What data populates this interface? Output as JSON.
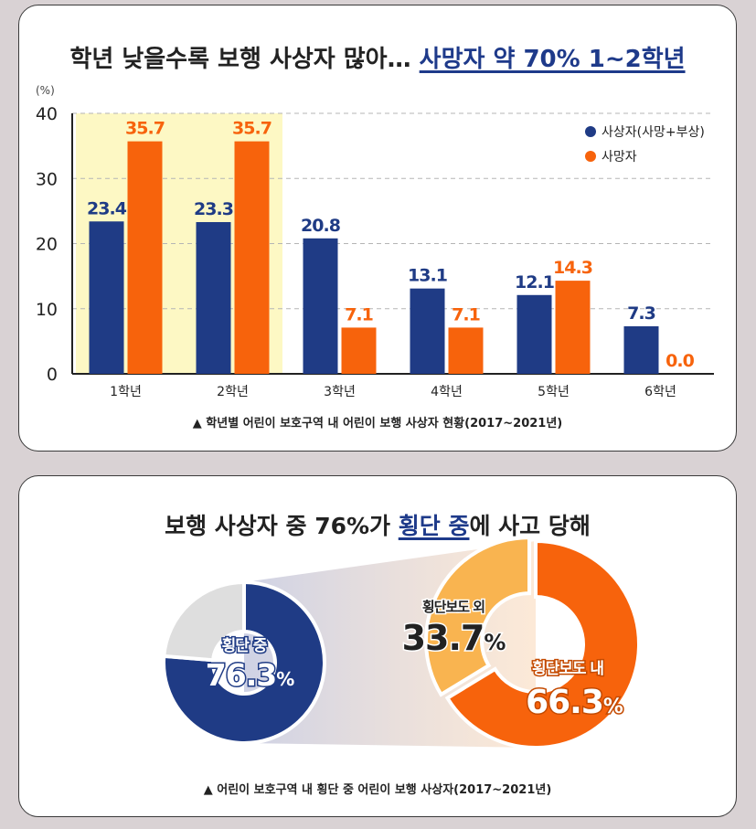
{
  "colors": {
    "navy": "#1f3b85",
    "orange": "#f7630c",
    "light_orange": "#f9b450",
    "gray": "#dedede",
    "highlight": "#fdf8c4"
  },
  "top": {
    "title_plain": "학년 낮을수록 보행 사상자 많아… ",
    "title_emph": "사망자 약 70% 1~2학년",
    "caption": "▲ 학년별 어린이 보호구역 내 어린이 보행 사상자 현황(2017~2021년)"
  },
  "chart_data": [
    {
      "type": "bar",
      "unit_label": "(%)",
      "categories": [
        "1학년",
        "2학년",
        "3학년",
        "4학년",
        "5학년",
        "6학년"
      ],
      "series": [
        {
          "name": "사상자(사망+부상)",
          "values": [
            23.4,
            23.3,
            20.8,
            13.1,
            12.1,
            7.3
          ],
          "labels": [
            "23.4",
            "23.3",
            "20.8",
            "13.1",
            "12.1",
            "7.3"
          ],
          "color": "#1f3b85"
        },
        {
          "name": "사망자",
          "values": [
            35.7,
            35.7,
            7.1,
            7.1,
            14.3,
            0.0
          ],
          "labels": [
            "35.7",
            "35.7",
            "7.1",
            "7.1",
            "14.3",
            "0.0"
          ],
          "color": "#f7630c"
        }
      ],
      "ylim": [
        0,
        40
      ],
      "yticks": [
        "0",
        "10",
        "20",
        "30",
        "40"
      ],
      "grid": true,
      "legend": "top-right",
      "highlighted_categories": [
        "1학년",
        "2학년"
      ]
    },
    {
      "type": "pie",
      "variant": "donut",
      "slices": [
        {
          "label": "횡단 중",
          "value": 76.3,
          "color": "#1f3b85"
        },
        {
          "label": "",
          "value": 23.7,
          "color": "#dedede"
        }
      ]
    },
    {
      "type": "pie",
      "variant": "donut",
      "slices": [
        {
          "label": "횡단보도 내",
          "value": 66.3,
          "color": "#f7630c"
        },
        {
          "label": "횡단보도 외",
          "value": 33.7,
          "color": "#f9b450"
        }
      ]
    }
  ],
  "bottom": {
    "title_a": "보행 사상자 중 76%가 ",
    "title_emph": "횡단 중",
    "title_b": "에 사고 당해",
    "left_label": "횡단 중",
    "left_value": "76.3",
    "right_inner_label": "횡단보도 내",
    "right_inner_value": "66.3",
    "right_outer_label": "횡단보도 외",
    "right_outer_value": "33.7",
    "percent_sign": "%",
    "caption": "▲ 어린이 보호구역 내 횡단 중 어린이 보행 사상자(2017~2021년)"
  }
}
